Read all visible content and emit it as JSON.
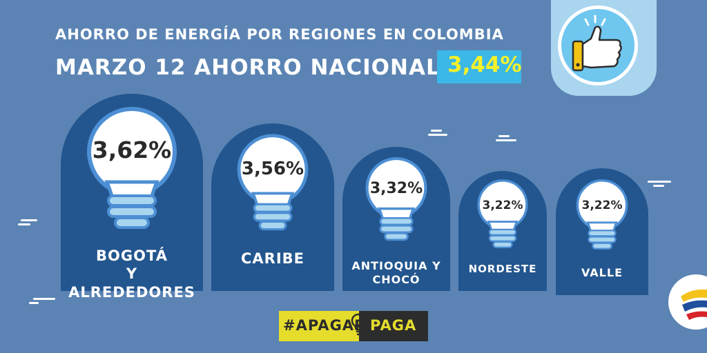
{
  "header": {
    "title": "AHORRO DE ENERGÍA POR REGIONES EN COLOMBIA",
    "subtitle": "MARZO 12 AHORRO NACIONAL:",
    "national_value": "3,44%"
  },
  "regions": [
    {
      "percent": "3,62%",
      "line1": "BOGOTÁ",
      "line2": "Y ALREDEDORES"
    },
    {
      "percent": "3,56%",
      "line1": "CARIBE",
      "line2": ""
    },
    {
      "percent": "3,32%",
      "line1": "ANTIOQUIA Y",
      "line2": "CHOCÓ"
    },
    {
      "percent": "3,22%",
      "line1": "NORDESTE",
      "line2": ""
    },
    {
      "percent": "3,22%",
      "line1": "VALLE",
      "line2": ""
    }
  ],
  "campaign": {
    "left": "#APAGAR",
    "right": "PAGA"
  },
  "colors": {
    "background": "#5b84b4",
    "card": "#23568f",
    "highlight": "#3bb7e8",
    "highlight_text": "#f4f02a",
    "campaign_yellow": "#e5dc2c",
    "campaign_dark": "#2c2c2c"
  },
  "icons": [
    "thumbs-up-icon",
    "light-bulb-icon",
    "colombia-logo-icon"
  ]
}
